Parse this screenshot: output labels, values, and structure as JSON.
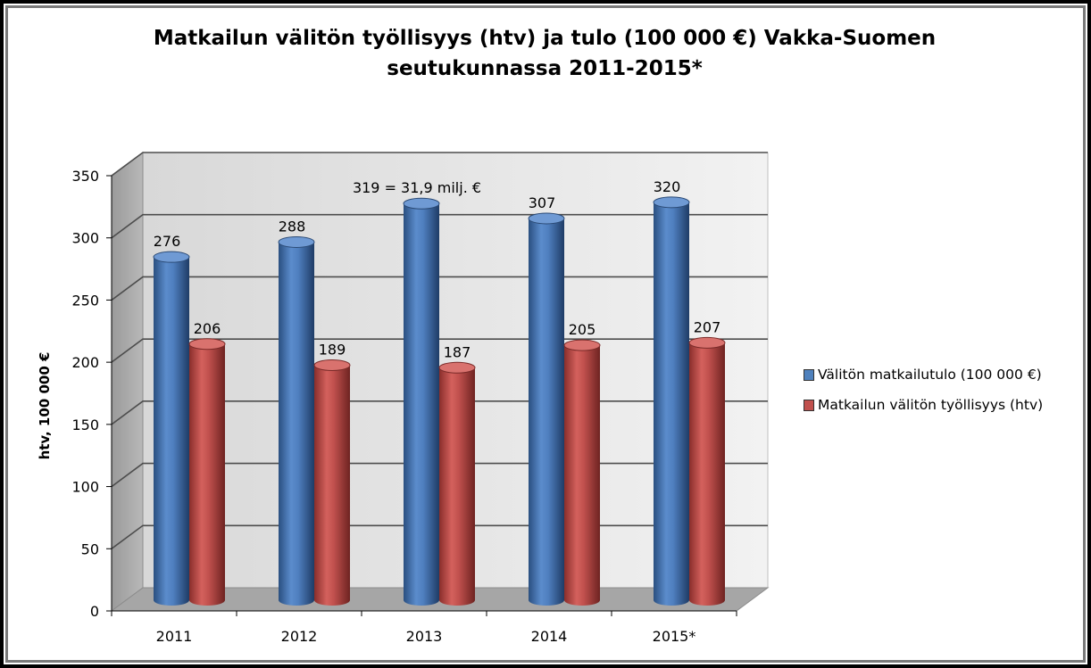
{
  "chart_data": {
    "type": "bar",
    "title_line1": "Matkailun välitön työllisyys (htv) ja tulo (100 000 €) Vakka-Suomen",
    "title_line2": "seutukunnassa 2011-2015*",
    "ylabel": "htv, 100 000 €",
    "xlabel": "",
    "ylim": [
      0,
      350
    ],
    "yticks": [
      0,
      50,
      100,
      150,
      200,
      250,
      300,
      350
    ],
    "categories": [
      "2011",
      "2012",
      "2013",
      "2014",
      "2015*"
    ],
    "series": [
      {
        "name": "Välitön matkailutulo (100 000 €)",
        "color": "#4F81BD",
        "values": [
          276,
          288,
          319,
          307,
          320
        ],
        "labels": [
          "276",
          "288",
          "319 = 31,9 milj. €",
          "307",
          "320"
        ]
      },
      {
        "name": "Matkailun välitön työllisyys (htv)",
        "color": "#C0504D",
        "values": [
          206,
          189,
          187,
          205,
          207
        ],
        "labels": [
          "206",
          "189",
          "187",
          "205",
          "207"
        ]
      }
    ],
    "grid": true,
    "legend": "right",
    "style": "3d-cylinder"
  }
}
